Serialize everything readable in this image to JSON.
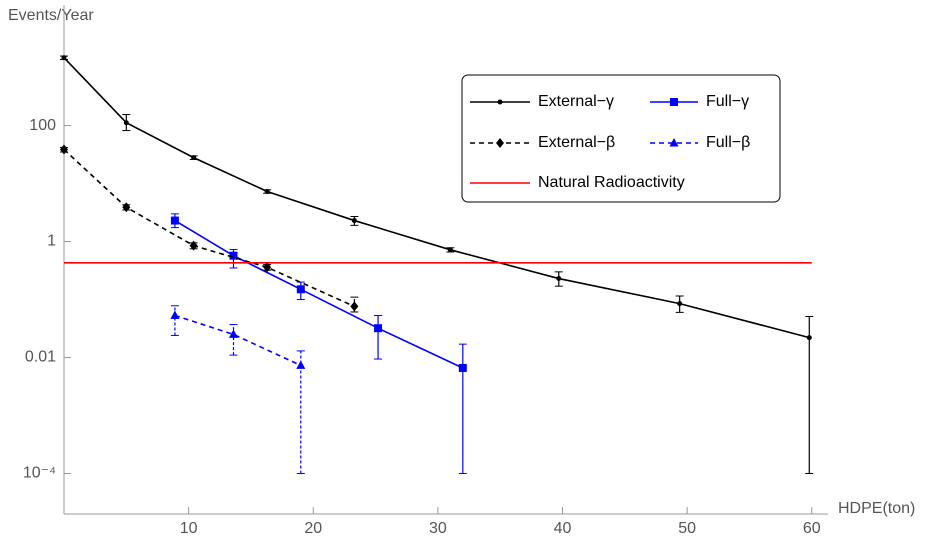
{
  "chart_data": {
    "type": "line",
    "ylabel": "Events/Year",
    "xlabel": "HDPE(ton)",
    "xlim": [
      0,
      60.5
    ],
    "xticks": [
      10,
      20,
      30,
      40,
      50,
      60
    ],
    "ylim": [
      2e-05,
      12000
    ],
    "log_y": true,
    "yticks": [
      {
        "value": 0.0001,
        "label": "10⁻⁴"
      },
      0.01,
      1,
      100
    ],
    "legend": "top-right",
    "series": [
      {
        "name": "External−γ",
        "color": "#000000",
        "dash": "solid",
        "marker": "dot",
        "x": [
          0,
          5,
          10.4,
          16.3,
          23.3,
          31,
          39.7,
          49.4,
          59.8
        ],
        "values": [
          1480,
          112,
          28,
          7.3,
          2.3,
          0.72,
          0.23,
          0.085,
          0.022
        ],
        "err_low": [
          1380,
          82,
          26,
          6.8,
          1.9,
          0.66,
          0.17,
          0.06,
          0.0001
        ],
        "err_high": [
          1580,
          155,
          30,
          7.8,
          2.7,
          0.78,
          0.3,
          0.115,
          0.051
        ]
      },
      {
        "name": "Full−γ",
        "color": "#0000ff",
        "dash": "solid",
        "marker": "square",
        "x": [
          8.9,
          13.6,
          19,
          25.2,
          32
        ],
        "values": [
          2.3,
          0.57,
          0.15,
          0.032,
          0.0066
        ],
        "err_low": [
          1.74,
          0.35,
          0.1,
          0.0094,
          0.0001
        ],
        "err_high": [
          3.0,
          0.73,
          0.2,
          0.053,
          0.017
        ]
      },
      {
        "name": "External−β",
        "color": "#000000",
        "dash": "dashed",
        "marker": "diamond",
        "x": [
          0,
          5,
          10.4,
          16.3,
          23.3
        ],
        "values": [
          38.6,
          3.9,
          0.85,
          0.36,
          0.076
        ],
        "err_low": [
          35,
          3.5,
          0.75,
          0.32,
          0.061
        ],
        "err_high": [
          42,
          4.3,
          0.95,
          0.4,
          0.11
        ]
      },
      {
        "name": "Full−β",
        "color": "#0000ff",
        "dash": "dashed",
        "marker": "triangle",
        "x": [
          8.9,
          13.6,
          19
        ],
        "values": [
          0.053,
          0.025,
          0.0073
        ],
        "err_low": [
          0.024,
          0.011,
          0.0001
        ],
        "err_high": [
          0.078,
          0.037,
          0.013
        ]
      },
      {
        "name": "Natural Radioactivity",
        "color": "#ff0000",
        "dash": "solid",
        "marker": "none",
        "x": [
          0,
          60
        ],
        "values": [
          0.43,
          0.43
        ]
      }
    ]
  }
}
